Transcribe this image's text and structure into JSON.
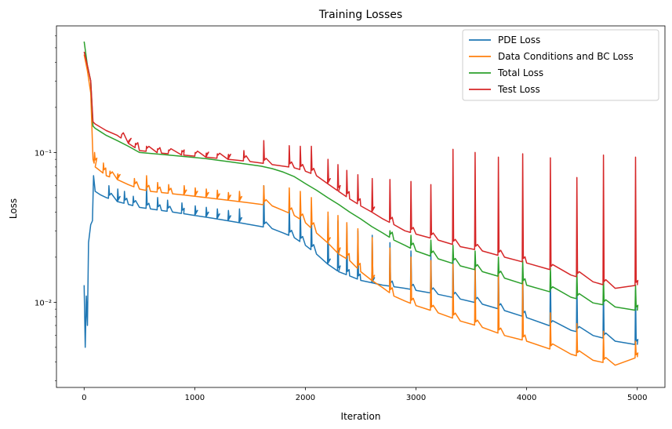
{
  "chart_data": {
    "type": "line",
    "title": "Training Losses",
    "xlabel": "Iteration",
    "ylabel": "Loss",
    "yscale": "log",
    "xlim": [
      -250,
      5250
    ],
    "ylim": [
      0.0027,
      0.7
    ],
    "xticks": [
      0,
      1000,
      2000,
      3000,
      4000,
      5000
    ],
    "xtick_labels": [
      "0",
      "1000",
      "2000",
      "3000",
      "4000",
      "5000"
    ],
    "yticks": [
      0.01,
      0.1
    ],
    "ytick_labels": [
      "10⁻²",
      "10⁻¹"
    ],
    "grid": false,
    "legend_position": "top-right",
    "series": [
      {
        "name": "PDE Loss",
        "color": "#1f77b4",
        "points": [
          [
            0,
            0.013
          ],
          [
            10,
            0.005
          ],
          [
            20,
            0.011
          ],
          [
            30,
            0.007
          ],
          [
            40,
            0.025
          ],
          [
            60,
            0.033
          ],
          [
            75,
            0.035
          ],
          [
            85,
            0.07
          ],
          [
            100,
            0.055
          ],
          [
            150,
            0.052
          ],
          [
            200,
            0.05
          ],
          [
            300,
            0.047
          ],
          [
            400,
            0.045
          ],
          [
            500,
            0.043
          ],
          [
            600,
            0.042
          ],
          [
            700,
            0.041
          ],
          [
            800,
            0.04
          ],
          [
            900,
            0.039
          ],
          [
            1000,
            0.038
          ],
          [
            1100,
            0.037
          ],
          [
            1200,
            0.036
          ],
          [
            1300,
            0.035
          ],
          [
            1400,
            0.034
          ],
          [
            1500,
            0.033
          ],
          [
            1600,
            0.032
          ],
          [
            1700,
            0.031
          ],
          [
            1800,
            0.029
          ],
          [
            1900,
            0.027
          ],
          [
            2000,
            0.024
          ],
          [
            2100,
            0.021
          ],
          [
            2200,
            0.018
          ],
          [
            2300,
            0.016
          ],
          [
            2400,
            0.015
          ],
          [
            2500,
            0.014
          ],
          [
            2600,
            0.0135
          ],
          [
            2700,
            0.013
          ],
          [
            2800,
            0.0127
          ],
          [
            2900,
            0.0124
          ],
          [
            3000,
            0.012
          ],
          [
            3200,
            0.0113
          ],
          [
            3400,
            0.0105
          ],
          [
            3600,
            0.0097
          ],
          [
            3800,
            0.0088
          ],
          [
            4000,
            0.0079
          ],
          [
            4200,
            0.007
          ],
          [
            4400,
            0.0065
          ],
          [
            4600,
            0.006
          ],
          [
            4800,
            0.0055
          ],
          [
            5000,
            0.0052
          ]
        ],
        "spikes": [
          [
            220,
            0.06
          ],
          [
            300,
            0.057
          ],
          [
            360,
            0.055
          ],
          [
            440,
            0.051
          ],
          [
            560,
            0.06
          ],
          [
            660,
            0.05
          ],
          [
            750,
            0.048
          ],
          [
            880,
            0.046
          ],
          [
            1000,
            0.044
          ],
          [
            1100,
            0.043
          ],
          [
            1200,
            0.042
          ],
          [
            1300,
            0.041
          ],
          [
            1400,
            0.042
          ],
          [
            1620,
            0.06
          ],
          [
            1850,
            0.045
          ],
          [
            1950,
            0.043
          ],
          [
            2050,
            0.04
          ],
          [
            2200,
            0.038
          ],
          [
            2290,
            0.035
          ],
          [
            2370,
            0.033
          ],
          [
            2470,
            0.03
          ],
          [
            2600,
            0.028
          ],
          [
            2760,
            0.025
          ],
          [
            2950,
            0.022
          ],
          [
            3130,
            0.021
          ],
          [
            3330,
            0.02
          ],
          [
            3530,
            0.019
          ],
          [
            3740,
            0.018
          ],
          [
            3960,
            0.017
          ],
          [
            4210,
            0.016
          ],
          [
            4450,
            0.014
          ],
          [
            4690,
            0.013
          ],
          [
            4980,
            0.012
          ]
        ]
      },
      {
        "name": "Data Conditions and BC Loss",
        "color": "#ff7f0e",
        "points": [
          [
            0,
            0.45
          ],
          [
            30,
            0.35
          ],
          [
            60,
            0.25
          ],
          [
            80,
            0.09
          ],
          [
            100,
            0.08
          ],
          [
            150,
            0.075
          ],
          [
            200,
            0.07
          ],
          [
            300,
            0.066
          ],
          [
            400,
            0.061
          ],
          [
            500,
            0.057
          ],
          [
            600,
            0.055
          ],
          [
            700,
            0.054
          ],
          [
            800,
            0.053
          ],
          [
            900,
            0.052
          ],
          [
            1000,
            0.051
          ],
          [
            1100,
            0.05
          ],
          [
            1200,
            0.049
          ],
          [
            1300,
            0.048
          ],
          [
            1400,
            0.047
          ],
          [
            1500,
            0.046
          ],
          [
            1600,
            0.045
          ],
          [
            1700,
            0.044
          ],
          [
            1800,
            0.041
          ],
          [
            1900,
            0.038
          ],
          [
            2000,
            0.034
          ],
          [
            2100,
            0.029
          ],
          [
            2200,
            0.025
          ],
          [
            2300,
            0.021
          ],
          [
            2400,
            0.019
          ],
          [
            2500,
            0.016
          ],
          [
            2600,
            0.014
          ],
          [
            2700,
            0.0125
          ],
          [
            2800,
            0.011
          ],
          [
            2900,
            0.0102
          ],
          [
            3000,
            0.0095
          ],
          [
            3200,
            0.0085
          ],
          [
            3400,
            0.0075
          ],
          [
            3600,
            0.0068
          ],
          [
            3800,
            0.006
          ],
          [
            4000,
            0.0055
          ],
          [
            4200,
            0.0049
          ],
          [
            4400,
            0.0045
          ],
          [
            4600,
            0.0041
          ],
          [
            4800,
            0.0038
          ],
          [
            5000,
            0.0043
          ]
        ],
        "spikes": [
          [
            90,
            0.1
          ],
          [
            170,
            0.085
          ],
          [
            230,
            0.075
          ],
          [
            300,
            0.072
          ],
          [
            450,
            0.067
          ],
          [
            560,
            0.07
          ],
          [
            660,
            0.063
          ],
          [
            760,
            0.061
          ],
          [
            900,
            0.06
          ],
          [
            1000,
            0.058
          ],
          [
            1100,
            0.057
          ],
          [
            1200,
            0.056
          ],
          [
            1300,
            0.054
          ],
          [
            1400,
            0.055
          ],
          [
            1620,
            0.06
          ],
          [
            1850,
            0.058
          ],
          [
            1950,
            0.055
          ],
          [
            2050,
            0.05
          ],
          [
            2200,
            0.04
          ],
          [
            2290,
            0.038
          ],
          [
            2370,
            0.034
          ],
          [
            2470,
            0.031
          ],
          [
            2600,
            0.027
          ],
          [
            2760,
            0.023
          ],
          [
            2950,
            0.02
          ],
          [
            3130,
            0.019
          ],
          [
            3330,
            0.018
          ],
          [
            3530,
            0.017
          ],
          [
            3740,
            0.016
          ],
          [
            3960,
            0.015
          ],
          [
            4210,
            0.0085
          ],
          [
            4450,
            0.0072
          ],
          [
            4690,
            0.0064
          ],
          [
            4980,
            0.0055
          ]
        ]
      },
      {
        "name": "Total Loss",
        "color": "#2ca02c",
        "points": [
          [
            0,
            0.55
          ],
          [
            30,
            0.38
          ],
          [
            60,
            0.3
          ],
          [
            80,
            0.15
          ],
          [
            100,
            0.145
          ],
          [
            200,
            0.13
          ],
          [
            300,
            0.12
          ],
          [
            400,
            0.11
          ],
          [
            500,
            0.1
          ],
          [
            700,
            0.097
          ],
          [
            900,
            0.094
          ],
          [
            1100,
            0.091
          ],
          [
            1300,
            0.087
          ],
          [
            1500,
            0.083
          ],
          [
            1600,
            0.081
          ],
          [
            1700,
            0.078
          ],
          [
            1800,
            0.074
          ],
          [
            1900,
            0.069
          ],
          [
            2000,
            0.062
          ],
          [
            2100,
            0.056
          ],
          [
            2200,
            0.05
          ],
          [
            2300,
            0.045
          ],
          [
            2400,
            0.04
          ],
          [
            2500,
            0.036
          ],
          [
            2600,
            0.032
          ],
          [
            2700,
            0.029
          ],
          [
            2800,
            0.026
          ],
          [
            2900,
            0.024
          ],
          [
            3000,
            0.022
          ],
          [
            3200,
            0.0195
          ],
          [
            3400,
            0.0175
          ],
          [
            3600,
            0.016
          ],
          [
            3800,
            0.0145
          ],
          [
            4000,
            0.013
          ],
          [
            4200,
            0.0118
          ],
          [
            4400,
            0.0108
          ],
          [
            4600,
            0.0099
          ],
          [
            4800,
            0.0093
          ],
          [
            5000,
            0.0088
          ]
        ],
        "spikes": [
          [
            2760,
            0.03
          ],
          [
            2950,
            0.028
          ],
          [
            3130,
            0.026
          ],
          [
            3330,
            0.024
          ],
          [
            3530,
            0.022
          ],
          [
            3740,
            0.02
          ],
          [
            3960,
            0.019
          ],
          [
            4210,
            0.017
          ],
          [
            4450,
            0.016
          ],
          [
            4690,
            0.015
          ],
          [
            4980,
            0.013
          ]
        ]
      },
      {
        "name": "Test Loss",
        "color": "#d62728",
        "points": [
          [
            0,
            0.47
          ],
          [
            30,
            0.38
          ],
          [
            60,
            0.3
          ],
          [
            80,
            0.16
          ],
          [
            100,
            0.155
          ],
          [
            200,
            0.14
          ],
          [
            300,
            0.13
          ],
          [
            400,
            0.115
          ],
          [
            500,
            0.103
          ],
          [
            700,
            0.099
          ],
          [
            900,
            0.096
          ],
          [
            1100,
            0.093
          ],
          [
            1300,
            0.09
          ],
          [
            1500,
            0.087
          ],
          [
            1600,
            0.085
          ],
          [
            1700,
            0.083
          ],
          [
            1800,
            0.081
          ],
          [
            1900,
            0.079
          ],
          [
            2000,
            0.075
          ],
          [
            2100,
            0.07
          ],
          [
            2200,
            0.062
          ],
          [
            2300,
            0.055
          ],
          [
            2400,
            0.049
          ],
          [
            2500,
            0.044
          ],
          [
            2600,
            0.04
          ],
          [
            2700,
            0.036
          ],
          [
            2800,
            0.033
          ],
          [
            2900,
            0.03
          ],
          [
            3000,
            0.0285
          ],
          [
            3200,
            0.026
          ],
          [
            3400,
            0.0235
          ],
          [
            3600,
            0.022
          ],
          [
            3800,
            0.02
          ],
          [
            4000,
            0.0183
          ],
          [
            4200,
            0.0166
          ],
          [
            4400,
            0.0152
          ],
          [
            4600,
            0.0137
          ],
          [
            4800,
            0.0124
          ],
          [
            5000,
            0.013
          ]
        ],
        "spikes": [
          [
            330,
            0.125
          ],
          [
            400,
            0.12
          ],
          [
            460,
            0.115
          ],
          [
            560,
            0.11
          ],
          [
            660,
            0.106
          ],
          [
            760,
            0.104
          ],
          [
            880,
            0.103
          ],
          [
            1000,
            0.1
          ],
          [
            1100,
            0.099
          ],
          [
            1200,
            0.098
          ],
          [
            1300,
            0.097
          ],
          [
            1440,
            0.103
          ],
          [
            1620,
            0.12
          ],
          [
            1850,
            0.111
          ],
          [
            1950,
            0.11
          ],
          [
            2050,
            0.11
          ],
          [
            2200,
            0.09
          ],
          [
            2290,
            0.083
          ],
          [
            2370,
            0.076
          ],
          [
            2470,
            0.071
          ],
          [
            2600,
            0.067
          ],
          [
            2760,
            0.066
          ],
          [
            2950,
            0.064
          ],
          [
            3130,
            0.061
          ],
          [
            3330,
            0.105
          ],
          [
            3530,
            0.1
          ],
          [
            3740,
            0.093
          ],
          [
            3960,
            0.098
          ],
          [
            4210,
            0.092
          ],
          [
            4450,
            0.068
          ],
          [
            4690,
            0.096
          ],
          [
            4980,
            0.093
          ]
        ]
      }
    ]
  }
}
